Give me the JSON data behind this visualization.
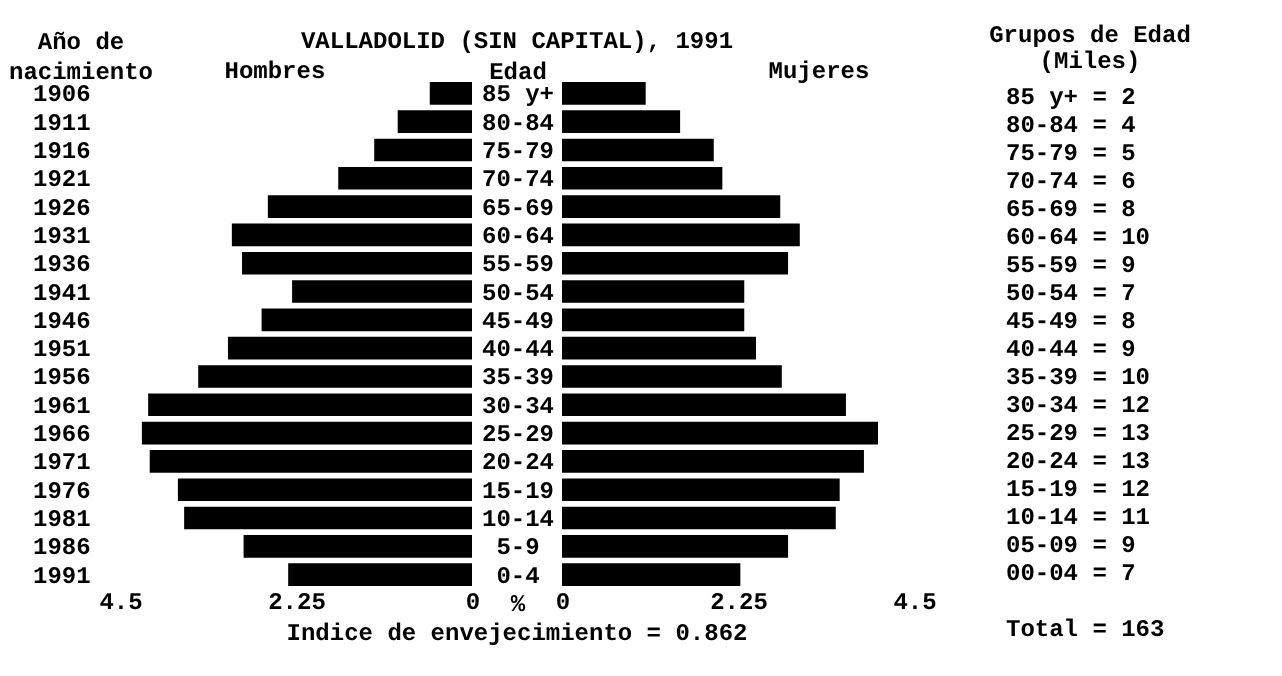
{
  "chart_data": [
    {
      "type": "bar",
      "orientation": "horizontal",
      "title": "VALLADOLID (SIN CAPITAL), 1991",
      "ylabel": "Año de nacimiento",
      "categories": [
        "1906",
        "1911",
        "1916",
        "1921",
        "1926",
        "1931",
        "1936",
        "1941",
        "1946",
        "1951",
        "1956",
        "1961",
        "1966",
        "1971",
        "1976",
        "1981",
        "1986",
        "1991"
      ],
      "series": [
        {
          "name": "Hombres",
          "color": "#000000",
          "values": [
            0.54,
            0.95,
            1.25,
            1.71,
            2.61,
            3.07,
            2.94,
            2.3,
            2.69,
            3.12,
            3.5,
            4.14,
            4.22,
            4.12,
            3.76,
            3.68,
            2.92,
            2.35
          ]
        }
      ],
      "xlim": [
        4.5,
        0
      ],
      "xticks": [
        4.5,
        2.25,
        0
      ]
    },
    {
      "type": "bar",
      "orientation": "horizontal",
      "ylabel": "Edad",
      "xlabel": "%",
      "categories": [
        "85 y+",
        "80-84",
        "75-79",
        "70-74",
        "65-69",
        "60-64",
        "55-59",
        "50-54",
        "45-49",
        "40-44",
        "35-39",
        "30-34",
        "25-29",
        "20-24",
        "15-19",
        "10-14",
        "5-9",
        "0-4"
      ],
      "series": [
        {
          "name": "Mujeres",
          "color": "#000000",
          "values": [
            1.07,
            1.51,
            1.94,
            2.05,
            2.79,
            3.04,
            2.89,
            2.33,
            2.33,
            2.48,
            2.81,
            3.63,
            4.04,
            3.86,
            3.55,
            3.5,
            2.89,
            2.28
          ]
        }
      ],
      "xlim": [
        0,
        4.5
      ],
      "xticks": [
        0,
        2.25,
        4.5
      ],
      "annotations": [
        "Indice de envejecimiento = 0.862"
      ]
    },
    {
      "type": "other",
      "title": "Grupos de Edad",
      "subtitle": "(Miles)",
      "annotations": [
        "85 y+ = 2",
        "80-84 = 4",
        "75-79 = 5",
        "70-74 = 6",
        "65-69 = 8",
        "60-64 = 10",
        "55-59 = 9",
        "50-54 = 7",
        "45-49 = 8",
        "40-44 = 9",
        "35-39 = 10",
        "30-34 = 12",
        "25-29 = 13",
        "20-24 = 13",
        "15-19 = 12",
        "10-14 = 11",
        "05-09 = 9",
        "00-04 = 7",
        "Total = 163"
      ]
    }
  ]
}
